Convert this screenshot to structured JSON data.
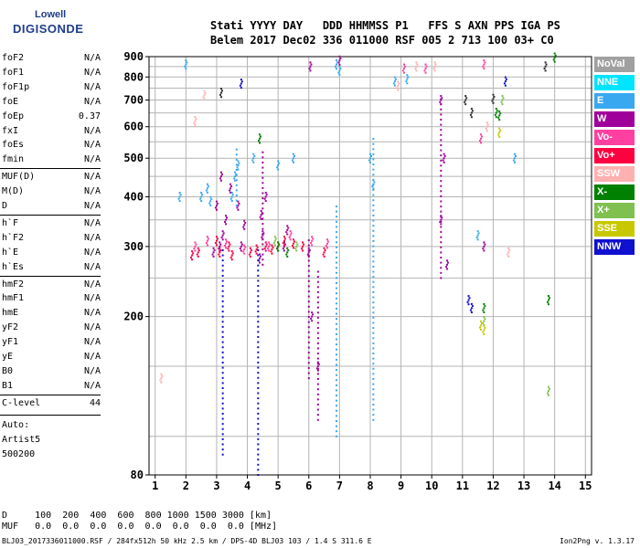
{
  "logo": {
    "line1": "Lowell",
    "line2": "DIGISONDE"
  },
  "header": {
    "line1": "Stati YYYY DAY   DDD HHMMSS P1   FFS S AXN PPS IGA PS",
    "line2": "Belem 2017 Dec02 336 011000 RSF 005 2 713 100 03+ C0"
  },
  "params": [
    {
      "name": "foF2",
      "value": "N/A"
    },
    {
      "name": "foF1",
      "value": "N/A"
    },
    {
      "name": "foF1p",
      "value": "N/A"
    },
    {
      "name": "foE",
      "value": "N/A"
    },
    {
      "name": "foEp",
      "value": "0.37"
    },
    {
      "name": "fxI",
      "value": "N/A"
    },
    {
      "name": "foEs",
      "value": "N/A"
    },
    {
      "name": "fmin",
      "value": "N/A"
    },
    {
      "name": "MUF(D)",
      "value": "N/A",
      "sep": true
    },
    {
      "name": "M(D)",
      "value": "N/A"
    },
    {
      "name": "D",
      "value": "N/A"
    },
    {
      "name": "h`F",
      "value": "N/A",
      "sep": true
    },
    {
      "name": "h`F2",
      "value": "N/A"
    },
    {
      "name": "h`E",
      "value": "N/A"
    },
    {
      "name": "h`Es",
      "value": "N/A"
    },
    {
      "name": "hmF2",
      "value": "N/A",
      "sep": true
    },
    {
      "name": "hmF1",
      "value": "N/A"
    },
    {
      "name": "hmE",
      "value": "N/A"
    },
    {
      "name": "yF2",
      "value": "N/A"
    },
    {
      "name": "yF1",
      "value": "N/A"
    },
    {
      "name": "yE",
      "value": "N/A"
    },
    {
      "name": "B0",
      "value": "N/A"
    },
    {
      "name": "B1",
      "value": "N/A"
    },
    {
      "name": "C-level",
      "value": "44",
      "sep": true
    }
  ],
  "autoscale": {
    "line1": "Auto:",
    "line2": "Artist5",
    "line3": "500200"
  },
  "bottom": {
    "d_line": "D     100  200  400  600  800 1000 1500 3000 [km]",
    "muf_line": "MUF   0.0  0.0  0.0  0.0  0.0  0.0  0.0  0.0 [MHz]"
  },
  "file_line": "BLJ03_2017336011000.RSF / 284fx512h 50 kHz 2.5 km / DPS-4D BLJ03 103 / 1.4 S 311.6 E",
  "version": "Ion2Png v. 1.3.17",
  "legend": [
    {
      "label": "NoVal",
      "color": "#a0a0a0"
    },
    {
      "label": "NNE",
      "color": "#00e5ff"
    },
    {
      "label": "E",
      "color": "#38a8f0"
    },
    {
      "label": "W",
      "color": "#a0009a"
    },
    {
      "label": "Vo-",
      "color": "#ff40a0"
    },
    {
      "label": "Vo+",
      "color": "#ff0040"
    },
    {
      "label": "SSW",
      "color": "#ffb0b0"
    },
    {
      "label": "X-",
      "color": "#008000"
    },
    {
      "label": "X+",
      "color": "#7fc050"
    },
    {
      "label": "SSE",
      "color": "#c8c800"
    },
    {
      "label": "NNW",
      "color": "#1010d0"
    }
  ],
  "chart_data": {
    "type": "scatter",
    "xlim": [
      0.8,
      15.2
    ],
    "ylim": [
      80,
      900
    ],
    "x_ticks": [
      1,
      2,
      3,
      4,
      5,
      6,
      7,
      8,
      9,
      10,
      11,
      12,
      13,
      14,
      15
    ],
    "y_ticks": [
      80,
      200,
      300,
      400,
      500,
      600,
      700,
      800,
      900
    ],
    "grid": true,
    "y_log": true,
    "series": [
      {
        "name": "W",
        "color": "#a0009a",
        "points": [
          [
            3.1,
            300
          ],
          [
            3.2,
            320
          ],
          [
            3.3,
            350
          ],
          [
            3.0,
            380
          ],
          [
            3.15,
            450
          ],
          [
            3.8,
            300
          ],
          [
            3.9,
            340
          ],
          [
            3.7,
            380
          ],
          [
            4.4,
            280
          ],
          [
            4.5,
            320
          ],
          [
            4.6,
            400
          ],
          [
            5.2,
            300
          ],
          [
            5.3,
            330
          ],
          [
            6.0,
            290
          ],
          [
            6.05,
            850
          ],
          [
            6.1,
            200
          ],
          [
            6.3,
            150
          ],
          [
            7.0,
            880
          ],
          [
            10.3,
            700
          ],
          [
            10.4,
            500
          ],
          [
            10.3,
            350
          ],
          [
            10.5,
            270
          ],
          [
            11.7,
            300
          ],
          [
            2.9,
            290
          ],
          [
            3.45,
            420
          ],
          [
            4.45,
            360
          ]
        ],
        "segments": [
          [
            6.0,
            140,
            6.0,
            320
          ],
          [
            6.3,
            110,
            6.3,
            260
          ],
          [
            10.3,
            250,
            10.3,
            720
          ],
          [
            4.5,
            270,
            4.5,
            520
          ]
        ]
      },
      {
        "name": "E",
        "color": "#38a8f0",
        "points": [
          [
            2.5,
            400
          ],
          [
            2.7,
            420
          ],
          [
            2.8,
            390
          ],
          [
            3.5,
            400
          ],
          [
            3.6,
            450
          ],
          [
            3.7,
            480
          ],
          [
            4.2,
            500
          ],
          [
            5.0,
            480
          ],
          [
            5.5,
            500
          ],
          [
            6.9,
            860
          ],
          [
            7.0,
            830
          ],
          [
            8.0,
            500
          ],
          [
            8.1,
            430
          ],
          [
            2.0,
            860
          ],
          [
            1.8,
            400
          ],
          [
            8.8,
            780
          ],
          [
            9.2,
            790
          ],
          [
            11.5,
            320
          ],
          [
            12.7,
            500
          ]
        ],
        "segments": [
          [
            6.9,
            100,
            6.9,
            380
          ],
          [
            8.1,
            110,
            8.1,
            560
          ],
          [
            3.65,
            380,
            3.65,
            540
          ]
        ]
      },
      {
        "name": "Vo+",
        "color": "#ff0040",
        "points": [
          [
            2.2,
            285
          ],
          [
            2.4,
            290
          ],
          [
            3.1,
            290
          ],
          [
            3.5,
            285
          ],
          [
            4.1,
            290
          ],
          [
            4.3,
            295
          ],
          [
            4.8,
            295
          ],
          [
            5.0,
            300
          ],
          [
            5.5,
            305
          ],
          [
            5.8,
            300
          ],
          [
            6.5,
            290
          ],
          [
            3.0,
            310
          ],
          [
            3.4,
            300
          ],
          [
            4.6,
            300
          ],
          [
            5.2,
            310
          ]
        ]
      },
      {
        "name": "Vo-",
        "color": "#ff40a0",
        "points": [
          [
            2.3,
            300
          ],
          [
            2.7,
            310
          ],
          [
            3.3,
            305
          ],
          [
            3.9,
            295
          ],
          [
            4.7,
            300
          ],
          [
            5.4,
            320
          ],
          [
            6.1,
            310
          ],
          [
            6.6,
            305
          ],
          [
            11.7,
            860
          ],
          [
            11.6,
            560
          ],
          [
            9.1,
            840
          ],
          [
            9.8,
            840
          ]
        ]
      },
      {
        "name": "SSW",
        "color": "#ffb0b0",
        "points": [
          [
            1.2,
            140
          ],
          [
            2.3,
            620
          ],
          [
            8.9,
            760
          ],
          [
            9.5,
            850
          ],
          [
            10.1,
            850
          ],
          [
            12.5,
            290
          ],
          [
            11.8,
            600
          ],
          [
            2.6,
            720
          ]
        ]
      },
      {
        "name": "X-",
        "color": "#008000",
        "points": [
          [
            5.0,
            300
          ],
          [
            5.3,
            290
          ],
          [
            12.1,
            650
          ],
          [
            12.2,
            640
          ],
          [
            13.8,
            220
          ],
          [
            14.0,
            895
          ],
          [
            11.7,
            210
          ],
          [
            4.4,
            560
          ]
        ]
      },
      {
        "name": "X+",
        "color": "#7fc050",
        "points": [
          [
            4.9,
            310
          ],
          [
            5.6,
            300
          ],
          [
            11.7,
            195
          ],
          [
            12.3,
            700
          ],
          [
            13.8,
            130
          ]
        ]
      },
      {
        "name": "SSE",
        "color": "#c8c800",
        "points": [
          [
            11.7,
            185
          ],
          [
            11.6,
            190
          ],
          [
            12.2,
            580
          ]
        ]
      },
      {
        "name": "NNW",
        "color": "#1010d0",
        "points": [
          [
            3.8,
            770
          ],
          [
            11.2,
            220
          ],
          [
            11.3,
            210
          ],
          [
            12.4,
            780
          ]
        ],
        "segments": [
          [
            3.2,
            90,
            3.2,
            300
          ],
          [
            4.35,
            80,
            4.35,
            300
          ]
        ]
      },
      {
        "name": "NoVal",
        "color": "#303030",
        "points": [
          [
            3.15,
            730
          ],
          [
            11.1,
            700
          ],
          [
            11.3,
            650
          ],
          [
            13.7,
            850
          ],
          [
            12.0,
            705
          ]
        ]
      }
    ]
  }
}
